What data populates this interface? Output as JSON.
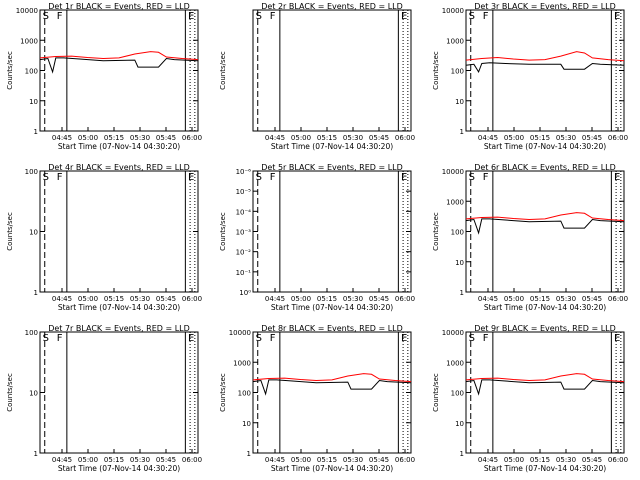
{
  "chart_data": [
    {
      "type": "line",
      "title": "Det 1r BLACK = Events, RED = LLD",
      "ylabel": "Counts/sec",
      "xlabel": "Start Time (07-Nov-14 04:30:20)",
      "x_ticks": [
        "04:45",
        "05:00",
        "05:15",
        "05:30",
        "05:45",
        "06:00"
      ],
      "yscale": "log",
      "y_ticks": [
        "1",
        "10",
        "100",
        "1000",
        "10000"
      ],
      "flag_labels": [
        "S",
        "F",
        "E"
      ],
      "series": [
        {
          "name": "Events",
          "color": "#000000",
          "x": [
            0,
            0.05,
            0.08,
            0.1,
            0.15,
            0.25,
            0.4,
            0.6,
            0.62,
            0.75,
            0.8,
            0.85,
            1.0
          ],
          "y": [
            230,
            250,
            90,
            260,
            260,
            240,
            210,
            220,
            130,
            130,
            250,
            230,
            210
          ]
        },
        {
          "name": "LLD",
          "color": "#ff0000",
          "x": [
            0,
            0.1,
            0.2,
            0.3,
            0.4,
            0.5,
            0.6,
            0.7,
            0.75,
            0.8,
            0.9,
            1.0
          ],
          "y": [
            260,
            290,
            300,
            270,
            250,
            260,
            350,
            420,
            400,
            280,
            250,
            230
          ]
        }
      ]
    },
    {
      "type": "line",
      "title": "Det 2r BLACK = Events, RED = LLD",
      "ylabel": "Counts/sec",
      "xlabel": "Start Time (07-Nov-14 04:30:20)",
      "x_ticks": [
        "04:45",
        "05:00",
        "05:15",
        "05:30",
        "05:45",
        "06:00"
      ],
      "yscale": "log",
      "y_ticks": [],
      "flag_labels": [
        "S",
        "F",
        "E"
      ],
      "series": []
    },
    {
      "type": "line",
      "title": "Det 3r BLACK = Events, RED = LLD",
      "ylabel": "Counts/sec",
      "xlabel": "Start Time (07-Nov-14 04:30:20)",
      "x_ticks": [
        "04:45",
        "05:00",
        "05:15",
        "05:30",
        "05:45",
        "06:00"
      ],
      "yscale": "log",
      "y_ticks": [
        "1",
        "10",
        "100",
        "1000",
        "10000"
      ],
      "flag_labels": [
        "S",
        "F",
        "E"
      ],
      "series": [
        {
          "name": "Events",
          "color": "#000000",
          "x": [
            0,
            0.05,
            0.08,
            0.1,
            0.15,
            0.25,
            0.4,
            0.6,
            0.62,
            0.75,
            0.8,
            0.85,
            1.0
          ],
          "y": [
            150,
            160,
            90,
            170,
            180,
            170,
            160,
            160,
            110,
            110,
            170,
            160,
            150
          ]
        },
        {
          "name": "LLD",
          "color": "#ff0000",
          "x": [
            0,
            0.1,
            0.2,
            0.3,
            0.4,
            0.5,
            0.6,
            0.7,
            0.75,
            0.8,
            0.9,
            1.0
          ],
          "y": [
            220,
            250,
            270,
            240,
            220,
            230,
            300,
            420,
            380,
            260,
            230,
            210
          ]
        }
      ]
    },
    {
      "type": "line",
      "title": "Det 4r BLACK = Events, RED = LLD",
      "ylabel": "Counts/sec",
      "xlabel": "Start Time (07-Nov-14 04:30:20)",
      "x_ticks": [
        "04:45",
        "05:00",
        "05:15",
        "05:30",
        "05:45",
        "06:00"
      ],
      "yscale": "log",
      "y_ticks": [
        "1",
        "10",
        "100"
      ],
      "flag_labels": [
        "S",
        "F",
        "E"
      ],
      "series": []
    },
    {
      "type": "line",
      "title": "Det 5r BLACK = Events, RED = LLD",
      "ylabel": "Counts/sec",
      "xlabel": "Start Time (07-Nov-14 04:30:20)",
      "x_ticks": [
        "04:45",
        "05:00",
        "05:15",
        "05:30",
        "05:45",
        "06:00"
      ],
      "yscale": "log",
      "y_ticks": [
        "10⁰",
        "10⁻¹",
        "10⁻²",
        "10⁻³",
        "10⁻⁴",
        "10⁻⁵",
        "10⁻⁶"
      ],
      "flag_labels": [
        "S",
        "F",
        "E"
      ],
      "series": []
    },
    {
      "type": "line",
      "title": "Det 6r BLACK = Events, RED = LLD",
      "ylabel": "Counts/sec",
      "xlabel": "Start Time (07-Nov-14 04:30:20)",
      "x_ticks": [
        "04:45",
        "05:00",
        "05:15",
        "05:30",
        "05:45",
        "06:00"
      ],
      "yscale": "log",
      "y_ticks": [
        "1",
        "10",
        "100",
        "1000",
        "10000"
      ],
      "flag_labels": [
        "S",
        "F",
        "E"
      ],
      "series": [
        {
          "name": "Events",
          "color": "#000000",
          "x": [
            0,
            0.05,
            0.08,
            0.1,
            0.15,
            0.25,
            0.4,
            0.6,
            0.62,
            0.75,
            0.8,
            0.85,
            1.0
          ],
          "y": [
            230,
            250,
            90,
            260,
            260,
            240,
            210,
            220,
            130,
            130,
            250,
            230,
            210
          ]
        },
        {
          "name": "LLD",
          "color": "#ff0000",
          "x": [
            0,
            0.1,
            0.2,
            0.3,
            0.4,
            0.5,
            0.6,
            0.7,
            0.75,
            0.8,
            0.9,
            1.0
          ],
          "y": [
            260,
            290,
            300,
            270,
            250,
            260,
            350,
            420,
            400,
            280,
            250,
            230
          ]
        }
      ]
    },
    {
      "type": "line",
      "title": "Det 7r BLACK = Events, RED = LLD",
      "ylabel": "Counts/sec",
      "xlabel": "Start Time (07-Nov-14 04:30:20)",
      "x_ticks": [
        "04:45",
        "05:00",
        "05:15",
        "05:30",
        "05:45",
        "06:00"
      ],
      "yscale": "log",
      "y_ticks": [
        "1",
        "10",
        "100"
      ],
      "flag_labels": [
        "S",
        "F",
        "E"
      ],
      "series": []
    },
    {
      "type": "line",
      "title": "Det 8r BLACK = Events, RED = LLD",
      "ylabel": "Counts/sec",
      "xlabel": "Start Time (07-Nov-14 04:30:20)",
      "x_ticks": [
        "04:45",
        "05:00",
        "05:15",
        "05:30",
        "05:45",
        "06:00"
      ],
      "yscale": "log",
      "y_ticks": [
        "1",
        "10",
        "100",
        "1000",
        "10000"
      ],
      "flag_labels": [
        "S",
        "F",
        "E"
      ],
      "series": [
        {
          "name": "Events",
          "color": "#000000",
          "x": [
            0,
            0.05,
            0.08,
            0.1,
            0.15,
            0.25,
            0.4,
            0.6,
            0.62,
            0.75,
            0.8,
            0.85,
            1.0
          ],
          "y": [
            230,
            250,
            90,
            260,
            260,
            240,
            210,
            220,
            130,
            130,
            250,
            230,
            210
          ]
        },
        {
          "name": "LLD",
          "color": "#ff0000",
          "x": [
            0,
            0.1,
            0.2,
            0.3,
            0.4,
            0.5,
            0.6,
            0.7,
            0.75,
            0.8,
            0.9,
            1.0
          ],
          "y": [
            260,
            290,
            300,
            270,
            250,
            260,
            350,
            420,
            400,
            280,
            250,
            230
          ]
        }
      ]
    },
    {
      "type": "line",
      "title": "Det 9r BLACK = Events, RED = LLD",
      "ylabel": "Counts/sec",
      "xlabel": "Start Time (07-Nov-14 04:30:20)",
      "x_ticks": [
        "04:45",
        "05:00",
        "05:15",
        "05:30",
        "05:45",
        "06:00"
      ],
      "yscale": "log",
      "y_ticks": [
        "1",
        "10",
        "100",
        "1000",
        "10000"
      ],
      "flag_labels": [
        "S",
        "F",
        "E"
      ],
      "series": [
        {
          "name": "Events",
          "color": "#000000",
          "x": [
            0,
            0.05,
            0.08,
            0.1,
            0.15,
            0.25,
            0.4,
            0.6,
            0.62,
            0.75,
            0.8,
            0.85,
            1.0
          ],
          "y": [
            230,
            250,
            90,
            260,
            260,
            240,
            210,
            220,
            130,
            130,
            250,
            230,
            210
          ]
        },
        {
          "name": "LLD",
          "color": "#ff0000",
          "x": [
            0,
            0.1,
            0.2,
            0.3,
            0.4,
            0.5,
            0.6,
            0.7,
            0.75,
            0.8,
            0.9,
            1.0
          ],
          "y": [
            260,
            290,
            300,
            270,
            250,
            260,
            350,
            420,
            400,
            280,
            250,
            230
          ]
        }
      ]
    }
  ]
}
